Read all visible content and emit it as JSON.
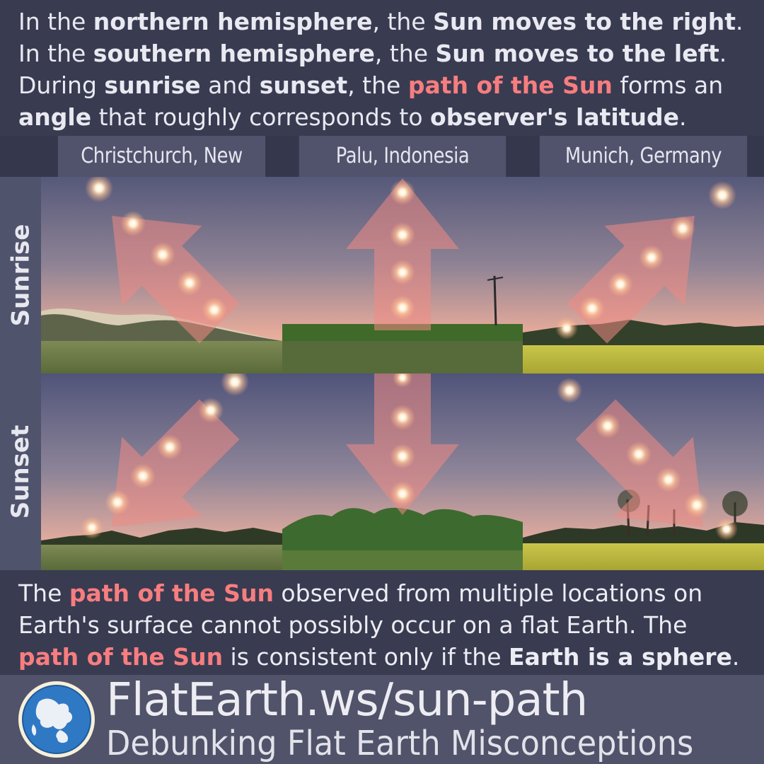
{
  "intro": {
    "line1": [
      "In the ",
      "northern hemisphere",
      ", the ",
      "Sun moves to the right",
      "."
    ],
    "line2": [
      "In the ",
      "southern hemisphere",
      ", the ",
      "Sun moves to the left",
      "."
    ],
    "line3": [
      "During ",
      "sunrise",
      " and ",
      "sunset",
      ", the ",
      "path of the Sun",
      " forms an"
    ],
    "line4": [
      "angle",
      " that roughly corresponds to ",
      "observer's latitude",
      "."
    ]
  },
  "columns": [
    "Christchurch, New Zealand",
    "Palu, Indonesia",
    "Munich, Germany"
  ],
  "rows": [
    "Sunrise",
    "Sunset"
  ],
  "summary": {
    "line1": [
      "The ",
      "path of the Sun",
      " observed from multiple locations on"
    ],
    "line2": [
      "Earth's surface cannot possibly occur on a flat Earth. The"
    ],
    "line3": [
      "path of the Sun",
      " is consistent only if the ",
      "Earth is a sphere",
      "."
    ]
  },
  "footer": {
    "site": "FlatEarth.ws/sun-path",
    "tagline": "Debunking Flat Earth Misconceptions"
  },
  "colors": {
    "highlight": "#f77d7f",
    "background": "#393b51",
    "label_band": "#50536c",
    "arrow": "#f08a84"
  },
  "icons": [
    "globe-logo-icon",
    "sun-icon",
    "arrow-icon"
  ]
}
